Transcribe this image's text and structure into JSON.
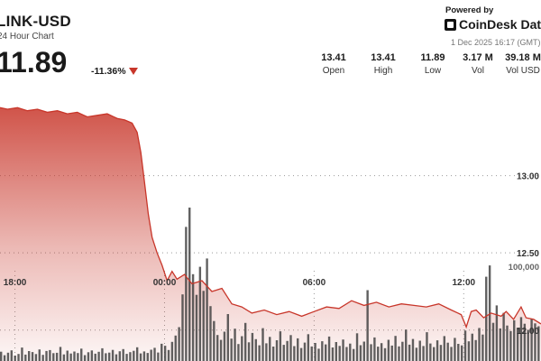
{
  "header": {
    "title": "LINK-USD",
    "subtitle": "24 Hour Chart",
    "price": "11.89",
    "change": "-11.36%",
    "change_color": "#c8362a",
    "direction_icon": "down-triangle-icon"
  },
  "branding": {
    "powered_by": "Powered by",
    "brand": "CoinDesk Data",
    "logo_icon": "coindesk-logo-icon",
    "timestamp": "1 Dec 2025 16:17 (GMT)"
  },
  "stats": [
    {
      "value": "13.41",
      "label": "Open"
    },
    {
      "value": "13.41",
      "label": "High"
    },
    {
      "value": "11.89",
      "label": "Low"
    },
    {
      "value": "3.17 M",
      "label": "Vol"
    },
    {
      "value": "39.18 M",
      "label": "Vol USD"
    }
  ],
  "chart_data": {
    "type": "area",
    "line_color": "#c8362a",
    "fill_color": "#c8362a",
    "x_ticks": [
      {
        "label": "18:00",
        "t": 1.5
      },
      {
        "label": "00:00",
        "t": 7.5
      },
      {
        "label": "06:00",
        "t": 13.5
      },
      {
        "label": "12:00",
        "t": 19.5
      }
    ],
    "y_ticks": [
      {
        "label": "13.00",
        "value": 13.0
      },
      {
        "label": "12.50",
        "value": 12.5
      },
      {
        "label": "12.00",
        "value": 12.0
      }
    ],
    "volume_tick": "100,000",
    "ylim": [
      11.8,
      13.57
    ],
    "tlim": [
      0.9,
      22.6
    ],
    "price_series": {
      "t": [
        0.9,
        1.2,
        1.6,
        2.0,
        2.4,
        2.8,
        3.2,
        3.6,
        4.0,
        4.4,
        4.8,
        5.2,
        5.6,
        5.9,
        6.2,
        6.4,
        6.55,
        6.7,
        6.85,
        7.0,
        7.2,
        7.4,
        7.6,
        7.8,
        8.0,
        8.3,
        8.6,
        9.0,
        9.4,
        9.8,
        10.2,
        10.6,
        11.0,
        11.5,
        12.0,
        12.5,
        13.0,
        13.5,
        14.0,
        14.5,
        15.0,
        15.5,
        16.0,
        16.5,
        17.0,
        17.5,
        18.0,
        18.5,
        19.0,
        19.4,
        19.6,
        19.8,
        20.0,
        20.3,
        20.6,
        21.0,
        21.2,
        21.5,
        21.8,
        22.0,
        22.3,
        22.6
      ],
      "v": [
        13.44,
        13.43,
        13.44,
        13.42,
        13.43,
        13.41,
        13.42,
        13.4,
        13.41,
        13.38,
        13.39,
        13.4,
        13.37,
        13.36,
        13.34,
        13.28,
        13.15,
        12.95,
        12.75,
        12.6,
        12.5,
        12.42,
        12.32,
        12.38,
        12.33,
        12.36,
        12.3,
        12.32,
        12.25,
        12.27,
        12.17,
        12.15,
        12.11,
        12.13,
        12.1,
        12.12,
        12.09,
        12.12,
        12.15,
        12.14,
        12.19,
        12.16,
        12.18,
        12.15,
        12.17,
        12.16,
        12.15,
        12.17,
        12.13,
        12.1,
        12.02,
        12.12,
        12.13,
        12.08,
        12.11,
        12.09,
        12.12,
        12.07,
        12.15,
        12.08,
        12.07,
        12.04
      ]
    },
    "volume_max": 135000,
    "volume_series": [
      8200,
      5100,
      7300,
      9400,
      4800,
      6200,
      11800,
      5600,
      8700,
      7900,
      6100,
      10200,
      5400,
      8800,
      9600,
      6900,
      7200,
      12400,
      5800,
      9100,
      6600,
      8300,
      7000,
      10900,
      5200,
      7700,
      9300,
      6400,
      8100,
      11200,
      6800,
      7400,
      9800,
      5900,
      8600,
      10500,
      6300,
      7800,
      9000,
      12100,
      6700,
      8400,
      7100,
      9900,
      11600,
      7500,
      15200,
      13400,
      9700,
      16800,
      22400,
      29800,
      58600,
      118000,
      135000,
      76400,
      58200,
      82900,
      61700,
      90200,
      48300,
      35200,
      22900,
      18600,
      25800,
      41300,
      19700,
      28400,
      14900,
      21800,
      33500,
      16400,
      24700,
      19200,
      13800,
      28900,
      15600,
      21200,
      12700,
      18300,
      26100,
      14200,
      17600,
      22800,
      13100,
      19900,
      11400,
      16200,
      23600,
      12800,
      15900,
      10800,
      17400,
      14600,
      21500,
      11900,
      16700,
      13300,
      18900,
      12300,
      15300,
      10600,
      24400,
      13900,
      17100,
      62300,
      14800,
      20700,
      12600,
      15700,
      11300,
      18700,
      13600,
      22100,
      12900,
      16900,
      27600,
      14400,
      19400,
      11700,
      17900,
      13200,
      25300,
      15400,
      12200,
      18200,
      14100,
      21900,
      16100,
      12400,
      20300,
      15100,
      13700,
      26800,
      17300,
      24100,
      18400,
      29100,
      23300,
      74200,
      84100,
      33600,
      48900,
      28700,
      42400,
      31200,
      26400,
      35800,
      29400,
      38600,
      32800,
      27300,
      36900,
      33100,
      30600
    ]
  }
}
